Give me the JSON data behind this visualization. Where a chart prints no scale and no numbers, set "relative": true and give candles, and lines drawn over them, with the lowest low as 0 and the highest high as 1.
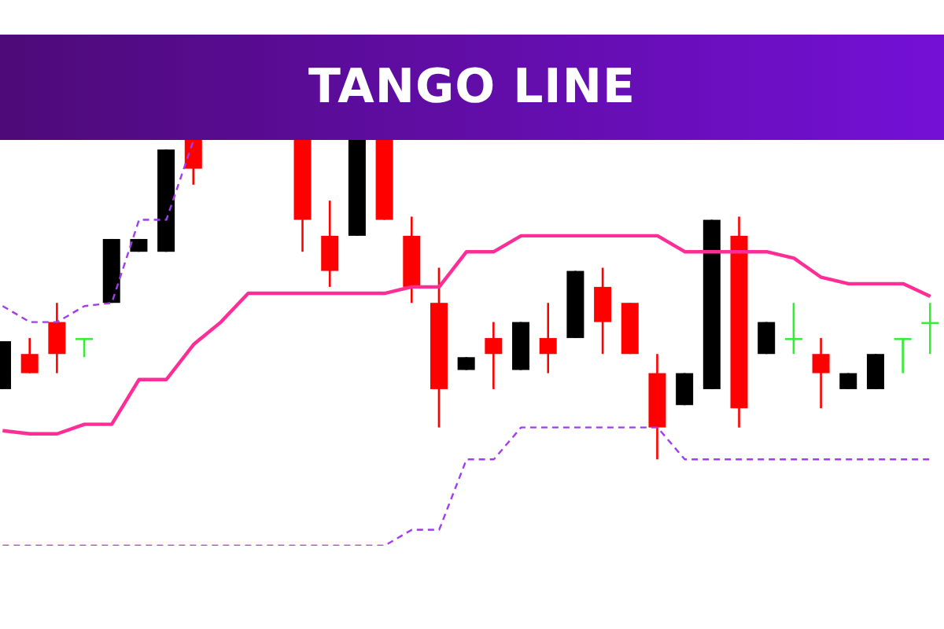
{
  "chart_data": {
    "type": "candlestick",
    "title": "TANGO LINE",
    "relative": true,
    "categories": [
      null,
      null,
      null,
      null,
      null,
      null,
      null,
      null,
      null,
      null,
      null,
      null,
      null,
      null,
      null,
      null,
      null,
      null,
      null,
      null,
      null,
      null,
      null,
      null,
      null,
      null,
      null,
      null,
      null,
      null,
      null,
      null,
      null,
      null,
      null
    ],
    "ohlc": [
      [
        0.22,
        0.37,
        0.22,
        0.37
      ],
      [
        0.33,
        0.38,
        0.27,
        0.27
      ],
      [
        0.43,
        0.49,
        0.27,
        0.33
      ],
      [
        0.38,
        0.38,
        0.32,
        0.38
      ],
      [
        0.49,
        0.69,
        0.49,
        0.69
      ],
      [
        0.65,
        0.69,
        0.65,
        0.69
      ],
      [
        0.65,
        0.97,
        0.65,
        0.97
      ],
      [
        1,
        1,
        0.86,
        0.91
      ],
      null,
      null,
      null,
      [
        1,
        1,
        0.65,
        0.75
      ],
      [
        0.7,
        0.81,
        0.54,
        0.59
      ],
      [
        0.7,
        1,
        0.7,
        1
      ],
      [
        1,
        1,
        0.75,
        0.75
      ],
      [
        0.7,
        0.76,
        0.49,
        0.54
      ],
      [
        0.49,
        0.6,
        0.1,
        0.22
      ],
      [
        0.28,
        0.32,
        0.28,
        0.32
      ],
      [
        0.38,
        0.43,
        0.22,
        0.33
      ],
      [
        0.28,
        0.43,
        0.28,
        0.43
      ],
      [
        0.38,
        0.49,
        0.27,
        0.33
      ],
      [
        0.38,
        0.59,
        0.38,
        0.59
      ],
      [
        0.54,
        0.6,
        0.33,
        0.43
      ],
      [
        0.49,
        0.49,
        0.33,
        0.33
      ],
      [
        0.27,
        0.33,
        0,
        0.1
      ],
      [
        0.17,
        0.27,
        0.17,
        0.27
      ],
      [
        0.22,
        0.75,
        0.22,
        0.75
      ],
      [
        0.7,
        0.76,
        0.1,
        0.16
      ],
      [
        0.33,
        0.43,
        0.33,
        0.43
      ],
      [
        0.38,
        0.49,
        0.33,
        0.38
      ],
      [
        0.33,
        0.38,
        0.16,
        0.27
      ],
      [
        0.22,
        0.27,
        0.22,
        0.27
      ],
      [
        0.22,
        0.33,
        0.22,
        0.33
      ],
      [
        0.38,
        0.38,
        0.27,
        0.38
      ],
      [
        0.43,
        0.49,
        0.33,
        0.43
      ]
    ],
    "colors": [
      "#000000",
      "#ff0000",
      "#ff0000",
      "#33ee33",
      "#000000",
      "#000000",
      "#000000",
      "#ff0000",
      null,
      null,
      null,
      "#ff0000",
      "#ff0000",
      "#000000",
      "#ff0000",
      "#ff0000",
      "#ff0000",
      "#000000",
      "#ff0000",
      "#000000",
      "#ff0000",
      "#000000",
      "#ff0000",
      "#ff0000",
      "#ff0000",
      "#000000",
      "#000000",
      "#ff0000",
      "#000000",
      "#33ee33",
      "#ff0000",
      "#000000",
      "#000000",
      "#33ee33",
      "#33ee33"
    ],
    "series": [
      {
        "type": "line",
        "color": "#ff2d95",
        "line_style": "solid",
        "values": [
          0.09,
          0.08,
          0.08,
          0.11,
          0.11,
          0.25,
          0.25,
          0.36,
          0.43,
          0.52,
          0.52,
          0.52,
          0.52,
          0.52,
          0.52,
          0.54,
          0.54,
          0.65,
          0.65,
          0.7,
          0.7,
          0.7,
          0.7,
          0.7,
          0.7,
          0.65,
          0.65,
          0.65,
          0.65,
          0.63,
          0.57,
          0.55,
          0.55,
          0.55,
          0.51
        ]
      },
      {
        "type": "line",
        "color": "#a23cf0",
        "line_style": "dashed",
        "values": [
          0.48,
          0.43,
          0.43,
          0.48,
          0.49,
          0.75,
          0.75,
          1.0,
          null,
          null,
          null,
          null,
          null,
          null,
          null,
          null,
          null,
          null,
          null,
          null,
          null,
          null,
          null,
          null,
          null,
          null,
          null,
          null,
          null,
          null,
          null,
          null,
          null,
          null,
          null
        ]
      },
      {
        "type": "line",
        "color": "#a23cf0",
        "line_style": "dashed",
        "values": [
          -0.27,
          -0.27,
          -0.27,
          -0.27,
          -0.27,
          -0.27,
          -0.27,
          -0.27,
          -0.27,
          -0.27,
          -0.27,
          -0.27,
          -0.27,
          -0.27,
          -0.27,
          -0.22,
          -0.22,
          0,
          0,
          0.1,
          0.1,
          0.1,
          0.1,
          0.1,
          0.1,
          0,
          0,
          0,
          0,
          0,
          0,
          0,
          0,
          0,
          0
        ]
      }
    ]
  }
}
